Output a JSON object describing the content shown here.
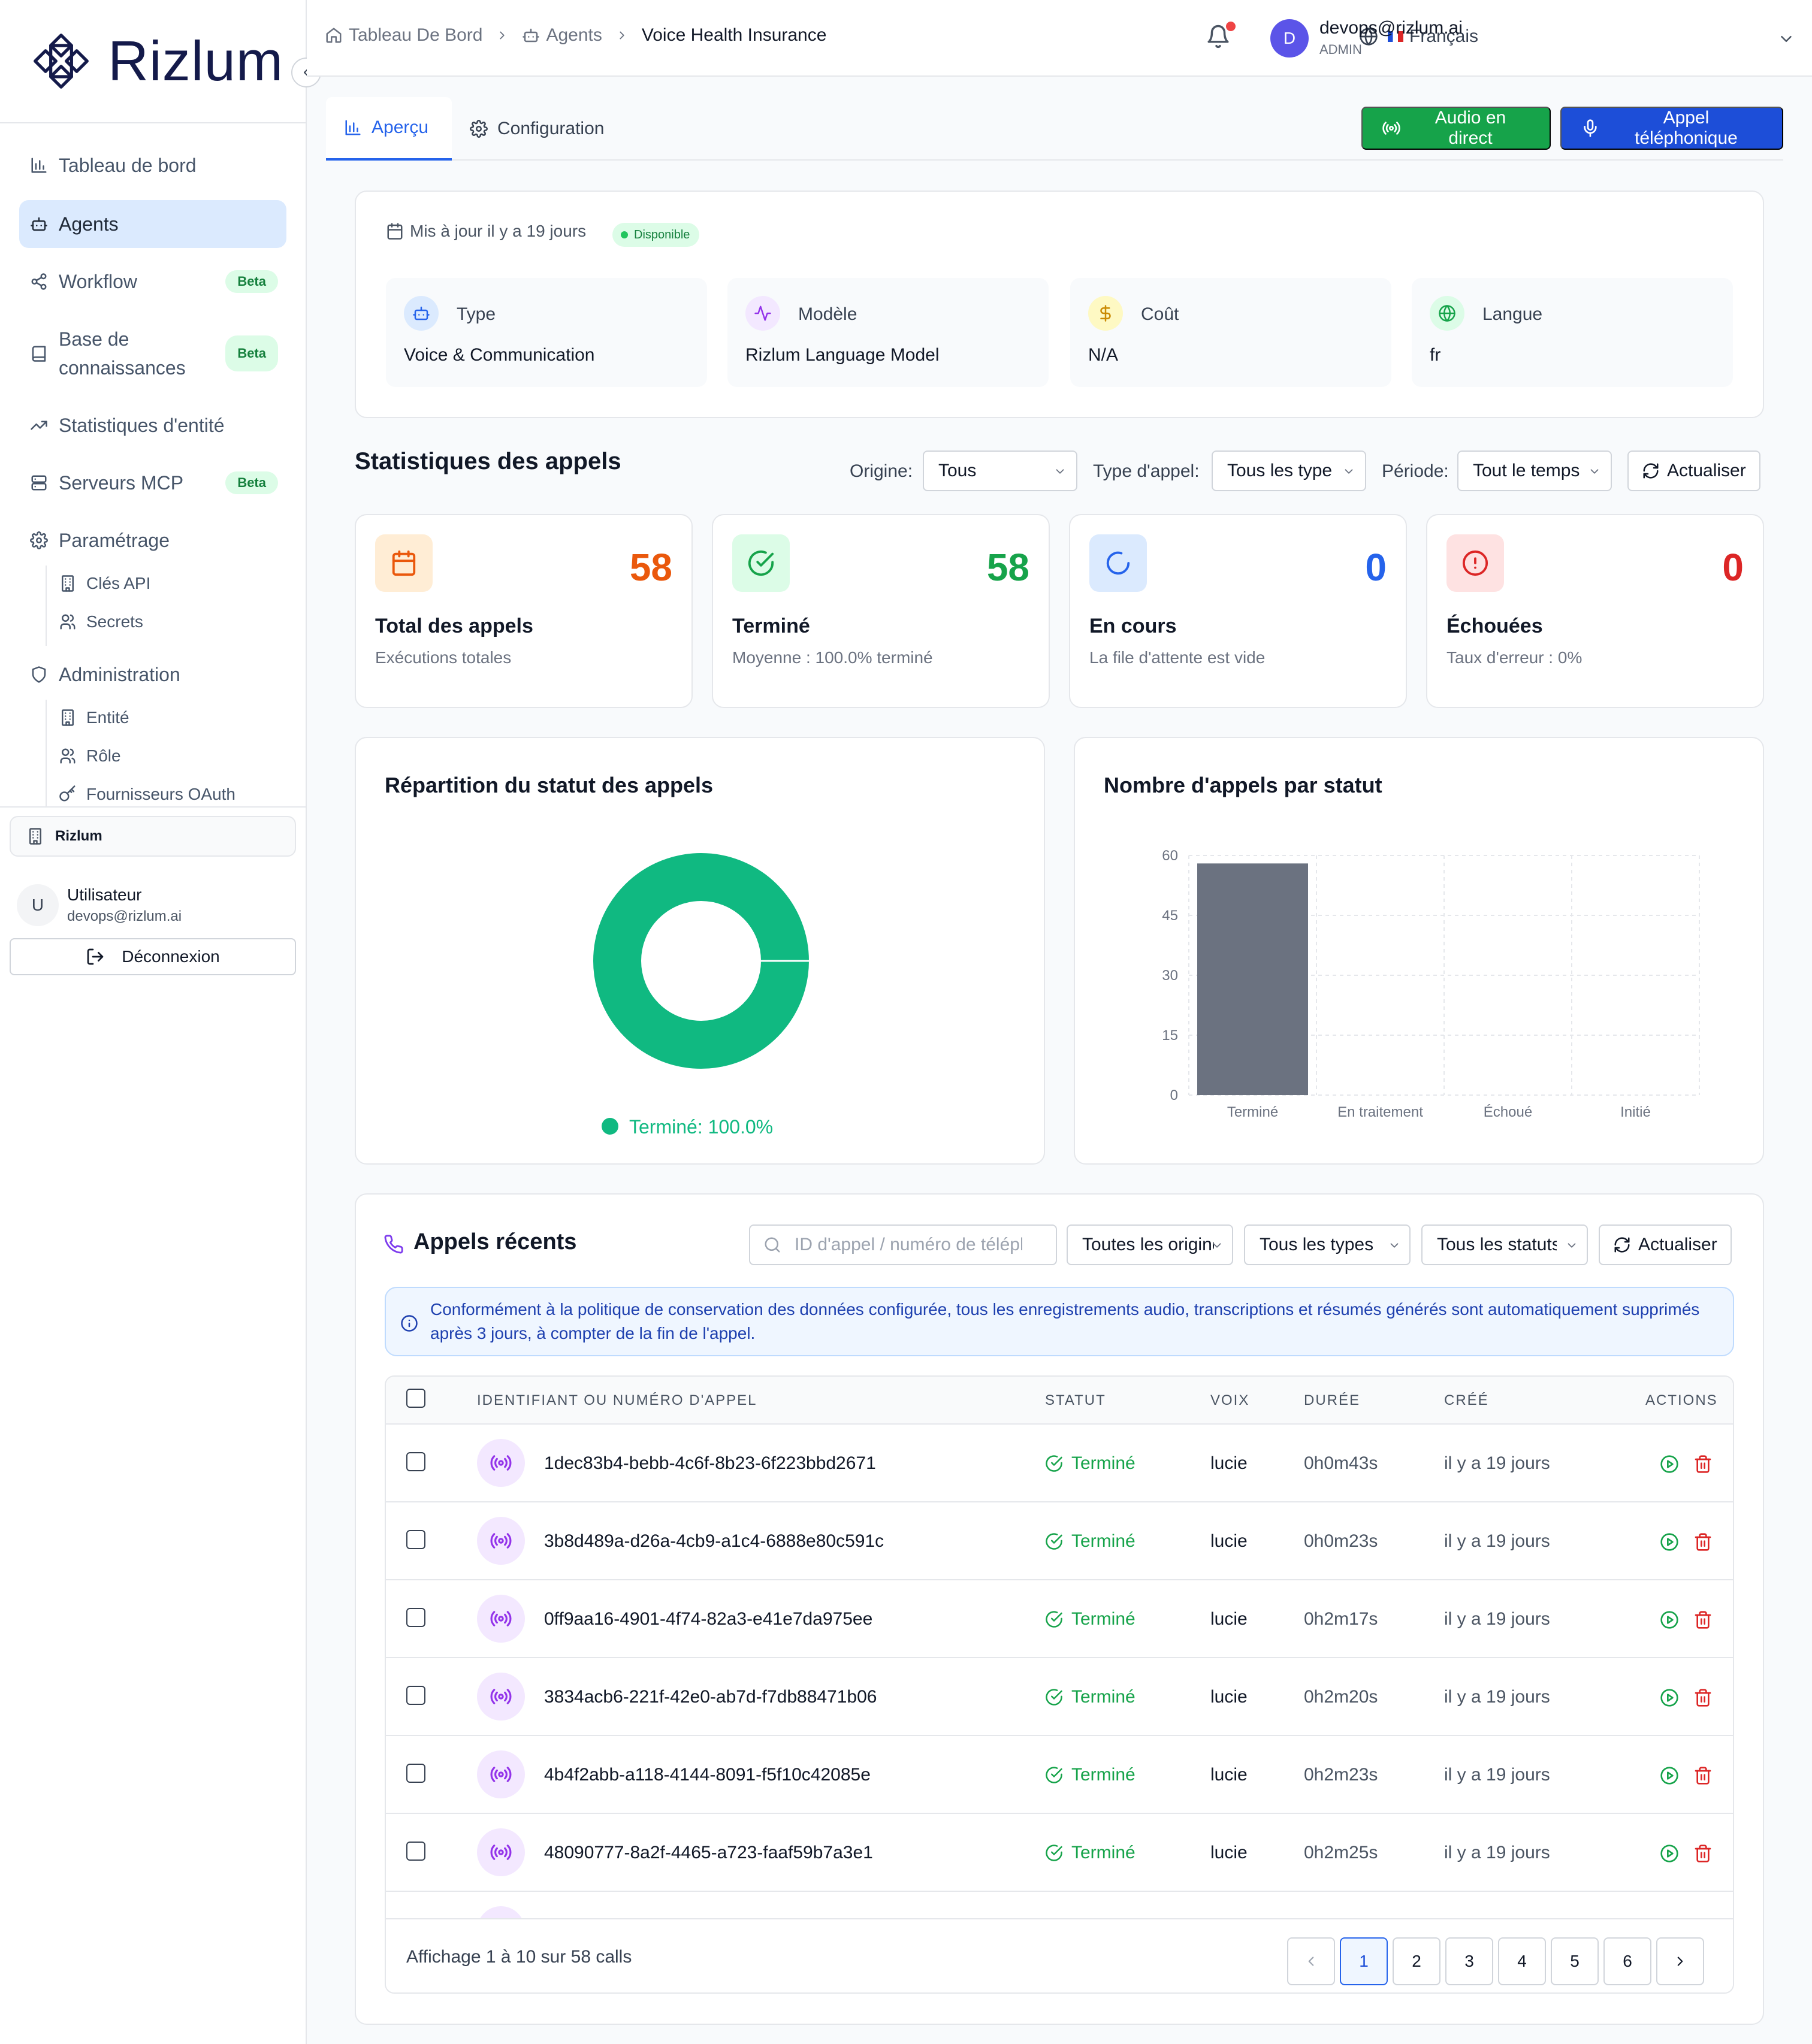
{
  "sidebar": {
    "brand": "Rizlum",
    "nav": [
      {
        "label": "Tableau de bord",
        "icon": "bar-chart-icon"
      },
      {
        "label": "Agents",
        "icon": "bot-icon",
        "active": true
      },
      {
        "label": "Workflow",
        "icon": "workflow-icon",
        "badge": "Beta"
      },
      {
        "label": "Base de connaissances",
        "icon": "book-icon",
        "badge": "Beta"
      },
      {
        "label": "Statistiques d'entité",
        "icon": "trending-icon"
      },
      {
        "label": "Serveurs MCP",
        "icon": "server-icon",
        "badge": "Beta"
      },
      {
        "label": "Paramétrage",
        "icon": "gear-icon"
      },
      {
        "label": "Administration",
        "icon": "shield-icon"
      }
    ],
    "settings_sub": [
      {
        "label": "Clés API",
        "icon": "building-icon"
      },
      {
        "label": "Secrets",
        "icon": "users-icon"
      }
    ],
    "admin_sub": [
      {
        "label": "Entité",
        "icon": "building-icon"
      },
      {
        "label": "Rôle",
        "icon": "users-icon"
      },
      {
        "label": "Fournisseurs OAuth",
        "icon": "key-icon"
      }
    ],
    "org_name": "Rizlum",
    "user": {
      "initial": "U",
      "name": "Utilisateur",
      "email": "devops@rizlum.ai"
    },
    "logout_label": "Déconnexion"
  },
  "header": {
    "breadcrumb": [
      "Tableau De Bord",
      "Agents",
      "Voice Health Insurance"
    ],
    "language": "Français",
    "account": {
      "initial": "D",
      "email": "devops@rizlum.ai",
      "role": "ADMIN"
    }
  },
  "tabs": [
    {
      "label": "Aperçu",
      "icon": "bar-chart-icon",
      "active": true
    },
    {
      "label": "Configuration",
      "icon": "gear-icon"
    }
  ],
  "actions": {
    "live_audio": "Audio en direct",
    "phone_call": "Appel téléphonique"
  },
  "agent": {
    "updated": "Mis à jour il y a 19 jours",
    "status": "Disponible",
    "info": [
      {
        "label": "Type",
        "value": "Voice & Communication",
        "icon": "bot-icon",
        "color": "#2563eb",
        "bg": "#dbeafe"
      },
      {
        "label": "Modèle",
        "value": "Rizlum Language Model",
        "icon": "activity-icon",
        "color": "#9333ea",
        "bg": "#f3e8ff"
      },
      {
        "label": "Coût",
        "value": "N/A",
        "icon": "dollar-icon",
        "color": "#ca8a04",
        "bg": "#fef9c3"
      },
      {
        "label": "Langue",
        "value": "fr",
        "icon": "globe-icon",
        "color": "#16a34a",
        "bg": "#dcfce7"
      }
    ]
  },
  "stats": {
    "title": "Statistiques des appels",
    "filters": {
      "origin_label": "Origine:",
      "origin_value": "Tous",
      "type_label": "Type d'appel:",
      "type_value": "Tous les type",
      "period_label": "Période:",
      "period_value": "Tout le temps",
      "refresh": "Actualiser"
    },
    "cards": [
      {
        "value": "58",
        "label": "Total des appels",
        "sub": "Exécutions totales",
        "icon": "calendar-icon",
        "color": "#ea580c",
        "bg": "#ffedd5"
      },
      {
        "value": "58",
        "label": "Terminé",
        "sub": "Moyenne : 100.0% terminé",
        "icon": "check-circle-icon",
        "color": "#16a34a",
        "bg": "#dcfce7"
      },
      {
        "value": "0",
        "label": "En cours",
        "sub": "La file d'attente est vide",
        "icon": "loader-icon",
        "color": "#2563eb",
        "bg": "#dbeafe"
      },
      {
        "value": "0",
        "label": "Échouées",
        "sub": "Taux d'erreur : 0%",
        "icon": "alert-circle-icon",
        "color": "#dc2626",
        "bg": "#fee2e2"
      }
    ]
  },
  "chart_data": [
    {
      "type": "pie",
      "title": "Répartition du statut des appels",
      "categories": [
        "Terminé"
      ],
      "values": [
        100.0
      ],
      "legend": "Terminé: 100.0%",
      "legend_placement": "bottom",
      "colors": [
        "#10b981"
      ]
    },
    {
      "type": "bar",
      "title": "Nombre d'appels par statut",
      "categories": [
        "Terminé",
        "En traitement",
        "Échoué",
        "Initié"
      ],
      "values": [
        58,
        0,
        0,
        0
      ],
      "yticks": [
        "0",
        "15",
        "30",
        "45",
        "60"
      ],
      "ylim": [
        0,
        60
      ],
      "grid": true,
      "color": "#6b7280"
    }
  ],
  "recent": {
    "title": "Appels récents",
    "search_placeholder": "ID d'appel / numéro de téléphone",
    "filter_origin": "Toutes les origines",
    "filter_type": "Tous les types",
    "filter_status": "Tous les statuts",
    "refresh": "Actualiser",
    "notice": "Conformément à la politique de conservation des données configurée, tous les enregistrements audio, transcriptions et résumés générés sont automatiquement supprimés après 3 jours, à compter de la fin de l'appel.",
    "columns": [
      "IDENTIFIANT OU NUMÉRO D'APPEL",
      "STATUT",
      "VOIX",
      "DURÉE",
      "CRÉÉ",
      "ACTIONS"
    ],
    "rows": [
      {
        "id": "1dec83b4-bebb-4c6f-8b23-6f223bbd2671",
        "status": "Terminé",
        "voice": "lucie",
        "duration": "0h0m43s",
        "created": "il y a 19 jours"
      },
      {
        "id": "3b8d489a-d26a-4cb9-a1c4-6888e80c591c",
        "status": "Terminé",
        "voice": "lucie",
        "duration": "0h0m23s",
        "created": "il y a 19 jours"
      },
      {
        "id": "0ff9aa16-4901-4f74-82a3-e41e7da975ee",
        "status": "Terminé",
        "voice": "lucie",
        "duration": "0h2m17s",
        "created": "il y a 19 jours"
      },
      {
        "id": "3834acb6-221f-42e0-ab7d-f7db88471b06",
        "status": "Terminé",
        "voice": "lucie",
        "duration": "0h2m20s",
        "created": "il y a 19 jours"
      },
      {
        "id": "4b4f2abb-a118-4144-8091-f5f10c42085e",
        "status": "Terminé",
        "voice": "lucie",
        "duration": "0h2m23s",
        "created": "il y a 19 jours"
      },
      {
        "id": "48090777-8a2f-4465-a723-faaf59b7a3e1",
        "status": "Terminé",
        "voice": "lucie",
        "duration": "0h2m25s",
        "created": "il y a 19 jours"
      }
    ],
    "showing": "Affichage 1 à 10 sur 58 calls",
    "pages": [
      "1",
      "2",
      "3",
      "4",
      "5",
      "6"
    ],
    "current_page": "1"
  }
}
